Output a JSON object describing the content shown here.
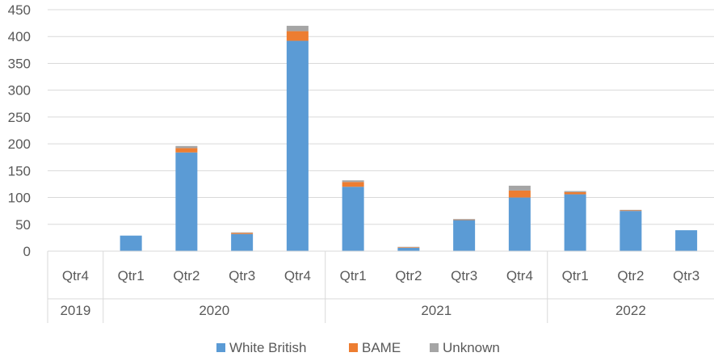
{
  "chart_data": {
    "type": "bar",
    "stacked": true,
    "title": "",
    "xlabel": "",
    "ylabel": "",
    "ylim": [
      0,
      450
    ],
    "y_ticks": [
      0,
      50,
      100,
      150,
      200,
      250,
      300,
      350,
      400,
      450
    ],
    "grid": true,
    "legend_position": "bottom",
    "categories": [
      "Qtr4",
      "Qtr1",
      "Qtr2",
      "Qtr3",
      "Qtr4",
      "Qtr1",
      "Qtr2",
      "Qtr3",
      "Qtr4",
      "Qtr1",
      "Qtr2",
      "Qtr3"
    ],
    "groups": [
      {
        "label": "2019",
        "count": 1
      },
      {
        "label": "2020",
        "count": 4
      },
      {
        "label": "2021",
        "count": 4
      },
      {
        "label": "2022",
        "count": 3
      }
    ],
    "series": [
      {
        "name": "White British",
        "color": "#5b9bd5",
        "values": [
          0,
          29,
          184,
          32,
          392,
          120,
          6,
          58,
          100,
          106,
          75,
          39
        ]
      },
      {
        "name": "BAME",
        "color": "#ed7d31",
        "values": [
          0,
          0,
          8,
          2,
          18,
          9,
          1,
          1,
          13,
          4,
          1,
          0
        ]
      },
      {
        "name": "Unknown",
        "color": "#a5a5a5",
        "values": [
          0,
          0,
          4,
          1,
          10,
          3,
          1,
          1,
          9,
          2,
          1,
          0
        ]
      }
    ]
  }
}
